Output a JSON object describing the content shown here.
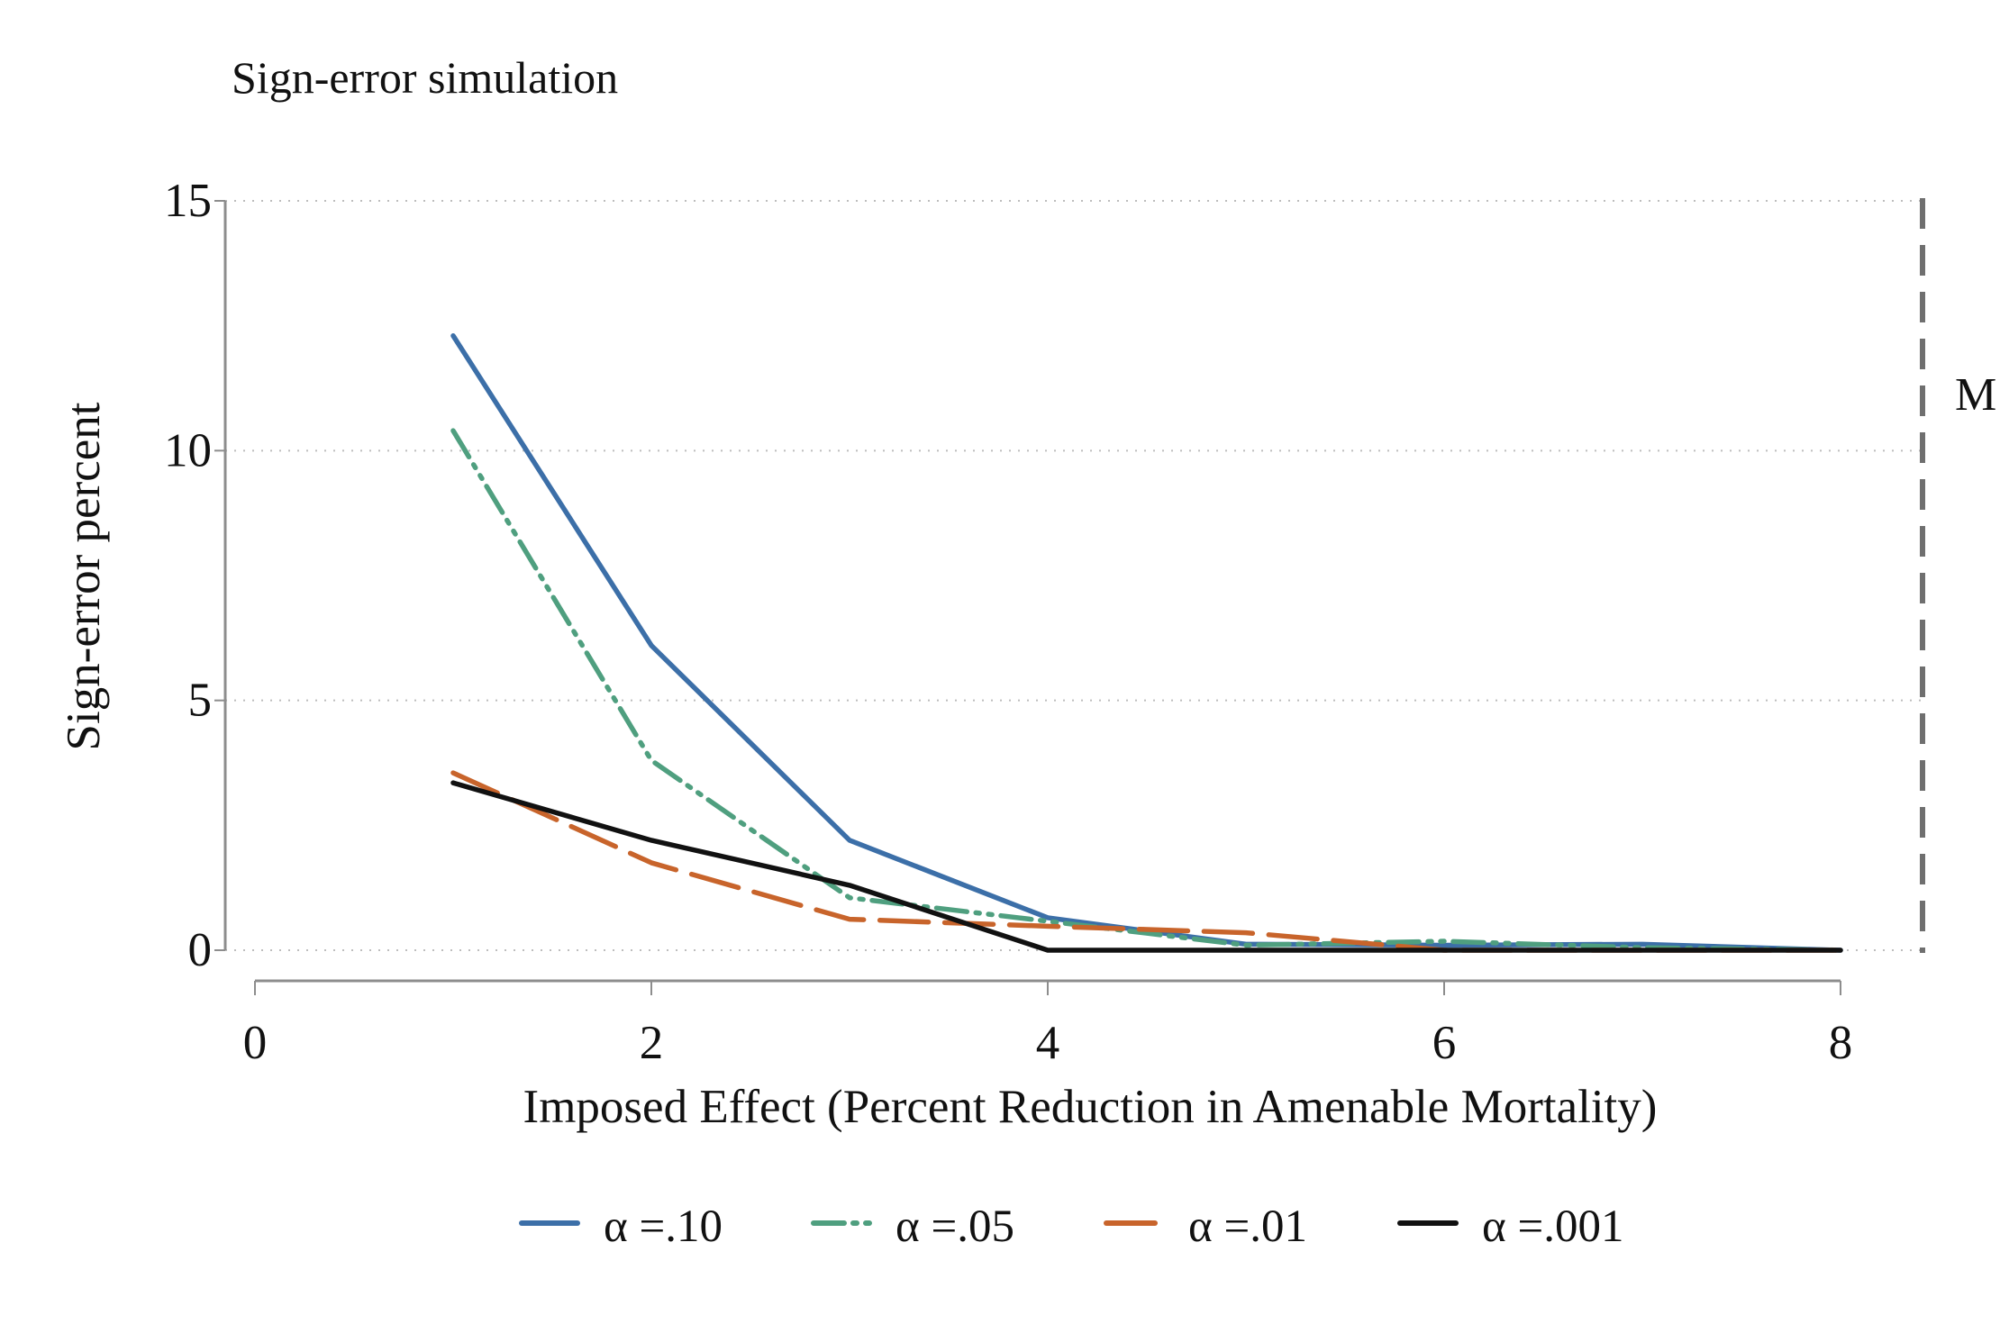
{
  "chart_data": {
    "type": "line",
    "title": "Sign-error simulation",
    "xlabel": "Imposed Effect (Percent Reduction in Amenable Mortality)",
    "ylabel": "Sign-error percent",
    "xlim": [
      0,
      8
    ],
    "ylim": [
      0,
      15
    ],
    "x_ticks": [
      "0",
      "2",
      "4",
      "6",
      "8"
    ],
    "y_ticks": [
      "0",
      "5",
      "10",
      "15"
    ],
    "grid": true,
    "legend_position": "bottom",
    "series": [
      {
        "name": "α =.10",
        "color": "#3c6fa8",
        "style": "solid",
        "x": [
          1,
          2,
          3,
          4,
          5,
          6,
          7,
          8
        ],
        "y": [
          12.3,
          6.1,
          2.2,
          0.65,
          0.12,
          0.1,
          0.12,
          0.0
        ]
      },
      {
        "name": "α =.05",
        "color": "#4f9f7f",
        "style": "dash-dot",
        "x": [
          1,
          2,
          3,
          4,
          5,
          6,
          7,
          8
        ],
        "y": [
          10.4,
          3.8,
          1.05,
          0.58,
          0.1,
          0.18,
          0.05,
          0.0
        ]
      },
      {
        "name": "α =.01",
        "color": "#c8642b",
        "style": "dashed",
        "x": [
          1,
          2,
          3,
          4,
          5,
          6,
          7,
          8
        ],
        "y": [
          3.55,
          1.75,
          0.62,
          0.48,
          0.35,
          0.0,
          0.0,
          0.0
        ]
      },
      {
        "name": "α =.001",
        "color": "#111111",
        "style": "solid",
        "x": [
          1,
          2,
          3,
          4,
          5,
          6,
          7,
          8
        ],
        "y": [
          3.35,
          2.2,
          1.3,
          0.0,
          0.0,
          0.0,
          0.0,
          0.0
        ]
      }
    ],
    "reference_line": {
      "label": "M",
      "color": "#6f6f6f",
      "style": "dashed"
    }
  }
}
